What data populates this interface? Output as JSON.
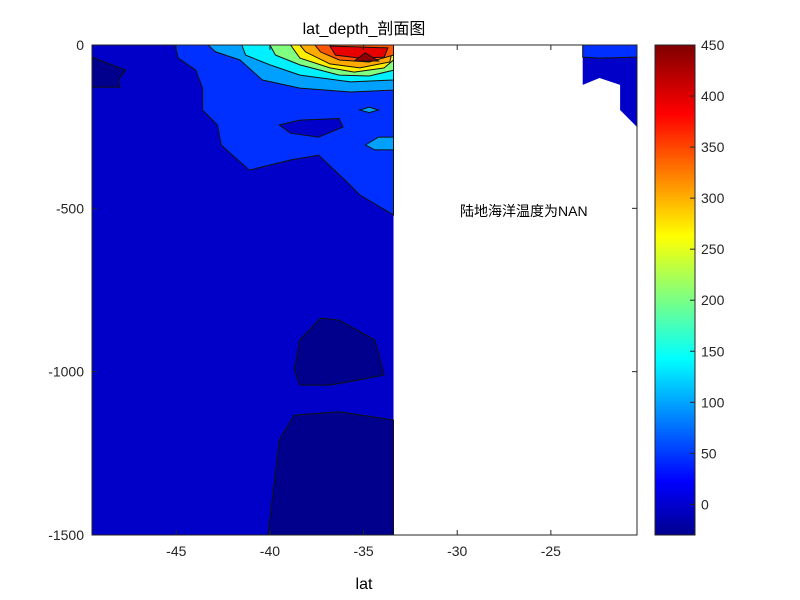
{
  "chart_data": {
    "type": "contourf",
    "title": "lat_depth_剖面图",
    "xlabel": "lat",
    "ylabel": "",
    "xlim": [
      -49.5,
      -20.4
    ],
    "ylim": [
      -1500,
      0
    ],
    "xticks": [
      -45,
      -40,
      -35,
      -30,
      -25
    ],
    "yticks": [
      0,
      -500,
      -1000,
      -1500
    ],
    "grid": false,
    "annotation": "陆地海洋温度为NAN",
    "colorbar": {
      "colormap": "jet",
      "limits": [
        -30,
        450
      ],
      "ticks": [
        0,
        50,
        100,
        150,
        200,
        250,
        300,
        350,
        400,
        450
      ],
      "location": "right"
    },
    "level_colors": {
      "-20": "#00008c",
      "0": "#0000c8",
      "50": "#0030ff",
      "100": "#00a0ff",
      "150": "#00f0ff",
      "200": "#80ff80",
      "250": "#ffee00",
      "300": "#ffaa00",
      "350": "#ff5500",
      "400": "#e80000",
      "450": "#900000"
    },
    "regions": [
      {
        "level": 0,
        "points": [
          [
            -49.5,
            0
          ],
          [
            -33.4,
            0
          ],
          [
            -33.4,
            -1500
          ],
          [
            -49.5,
            -1500
          ]
        ]
      },
      {
        "level": 0,
        "points": [
          [
            -23.3,
            0
          ],
          [
            -20.4,
            0
          ],
          [
            -20.4,
            -251
          ],
          [
            -21.3,
            -199
          ],
          [
            -21.3,
            -122
          ],
          [
            -22.4,
            -101
          ],
          [
            -23.3,
            -122
          ]
        ]
      },
      {
        "level": 50,
        "points": [
          [
            -23.3,
            0
          ],
          [
            -20.4,
            0
          ],
          [
            -20.4,
            -37
          ],
          [
            -22.4,
            -40
          ],
          [
            -23.3,
            -37
          ]
        ]
      },
      {
        "level": -20,
        "points": [
          [
            -49.5,
            -37
          ],
          [
            -47.7,
            -77
          ],
          [
            -48.1,
            -107
          ],
          [
            -48.0,
            -129
          ],
          [
            -49.5,
            -129
          ]
        ]
      },
      {
        "level": 50,
        "points": [
          [
            -45.07,
            0
          ],
          [
            -44.9,
            -40
          ],
          [
            -43.95,
            -77
          ],
          [
            -43.6,
            -132
          ],
          [
            -43.6,
            -199
          ],
          [
            -42.8,
            -245
          ],
          [
            -42.6,
            -306
          ],
          [
            -41.1,
            -383
          ],
          [
            -38.9,
            -352
          ],
          [
            -37.4,
            -337
          ],
          [
            -36.0,
            -413
          ],
          [
            -35.2,
            -459
          ],
          [
            -33.4,
            -520
          ],
          [
            -33.4,
            0
          ]
        ]
      },
      {
        "level": 0,
        "points": [
          [
            -39.5,
            -245
          ],
          [
            -38.4,
            -230
          ],
          [
            -36.3,
            -225
          ],
          [
            -36.1,
            -251
          ],
          [
            -37.4,
            -282
          ],
          [
            -38.9,
            -270
          ]
        ]
      },
      {
        "level": 100,
        "points": [
          [
            -35.2,
            -199
          ],
          [
            -34.7,
            -190
          ],
          [
            -34.2,
            -199
          ],
          [
            -34.7,
            -207
          ]
        ]
      },
      {
        "level": 100,
        "points": [
          [
            -34.9,
            -306
          ],
          [
            -34.2,
            -282
          ],
          [
            -33.4,
            -282
          ],
          [
            -33.4,
            -321
          ],
          [
            -34.4,
            -321
          ]
        ]
      },
      {
        "level": 100,
        "points": [
          [
            -43.3,
            0
          ],
          [
            -42.9,
            -21
          ],
          [
            -41.6,
            -46
          ],
          [
            -40.4,
            -107
          ],
          [
            -38.4,
            -132
          ],
          [
            -35.7,
            -144
          ],
          [
            -33.4,
            -138
          ],
          [
            -33.4,
            0
          ]
        ]
      },
      {
        "level": 150,
        "points": [
          [
            -41.5,
            0
          ],
          [
            -41.3,
            -31
          ],
          [
            -40.0,
            -61
          ],
          [
            -38.4,
            -92
          ],
          [
            -35.7,
            -113
          ],
          [
            -33.4,
            -107
          ],
          [
            -33.4,
            0
          ]
        ]
      },
      {
        "level": 200,
        "points": [
          [
            -40.0,
            0
          ],
          [
            -39.7,
            -31
          ],
          [
            -38.4,
            -61
          ],
          [
            -36.3,
            -92
          ],
          [
            -34.7,
            -95
          ],
          [
            -33.4,
            -77
          ],
          [
            -33.4,
            0
          ]
        ]
      },
      {
        "level": 250,
        "points": [
          [
            -38.9,
            0
          ],
          [
            -38.4,
            -40
          ],
          [
            -36.8,
            -70
          ],
          [
            -35.5,
            -83
          ],
          [
            -33.9,
            -70
          ],
          [
            -33.4,
            -46
          ],
          [
            -33.4,
            0
          ]
        ]
      },
      {
        "level": 300,
        "points": [
          [
            -38.4,
            0
          ],
          [
            -38.1,
            -21
          ],
          [
            -36.8,
            -58
          ],
          [
            -35.2,
            -70
          ],
          [
            -33.6,
            -52
          ],
          [
            -33.4,
            0
          ]
        ]
      },
      {
        "level": 350,
        "points": [
          [
            -37.6,
            0
          ],
          [
            -37.3,
            -21
          ],
          [
            -36.3,
            -46
          ],
          [
            -34.7,
            -52
          ],
          [
            -33.4,
            -31
          ],
          [
            -33.4,
            0
          ]
        ]
      },
      {
        "level": 400,
        "points": [
          [
            -36.8,
            -3
          ],
          [
            -36.5,
            -31
          ],
          [
            -35.2,
            -40
          ],
          [
            -33.9,
            -37
          ],
          [
            -33.7,
            -9
          ]
        ]
      },
      {
        "level": 450,
        "points": [
          [
            -35.5,
            -49
          ],
          [
            -34.9,
            -24
          ],
          [
            -34.2,
            -49
          ]
        ]
      },
      {
        "level": -20,
        "points": [
          [
            -38.7,
            -995
          ],
          [
            -38.4,
            -903
          ],
          [
            -37.3,
            -836
          ],
          [
            -36.3,
            -842
          ],
          [
            -34.4,
            -903
          ],
          [
            -33.9,
            -1010
          ],
          [
            -35.2,
            -1025
          ],
          [
            -36.8,
            -1041
          ],
          [
            -38.4,
            -1041
          ]
        ]
      },
      {
        "level": -20,
        "points": [
          [
            -40.1,
            -1500
          ],
          [
            -39.5,
            -1209
          ],
          [
            -38.7,
            -1133
          ],
          [
            -36.3,
            -1123
          ],
          [
            -33.4,
            -1148
          ],
          [
            -33.4,
            -1500
          ]
        ]
      }
    ]
  }
}
